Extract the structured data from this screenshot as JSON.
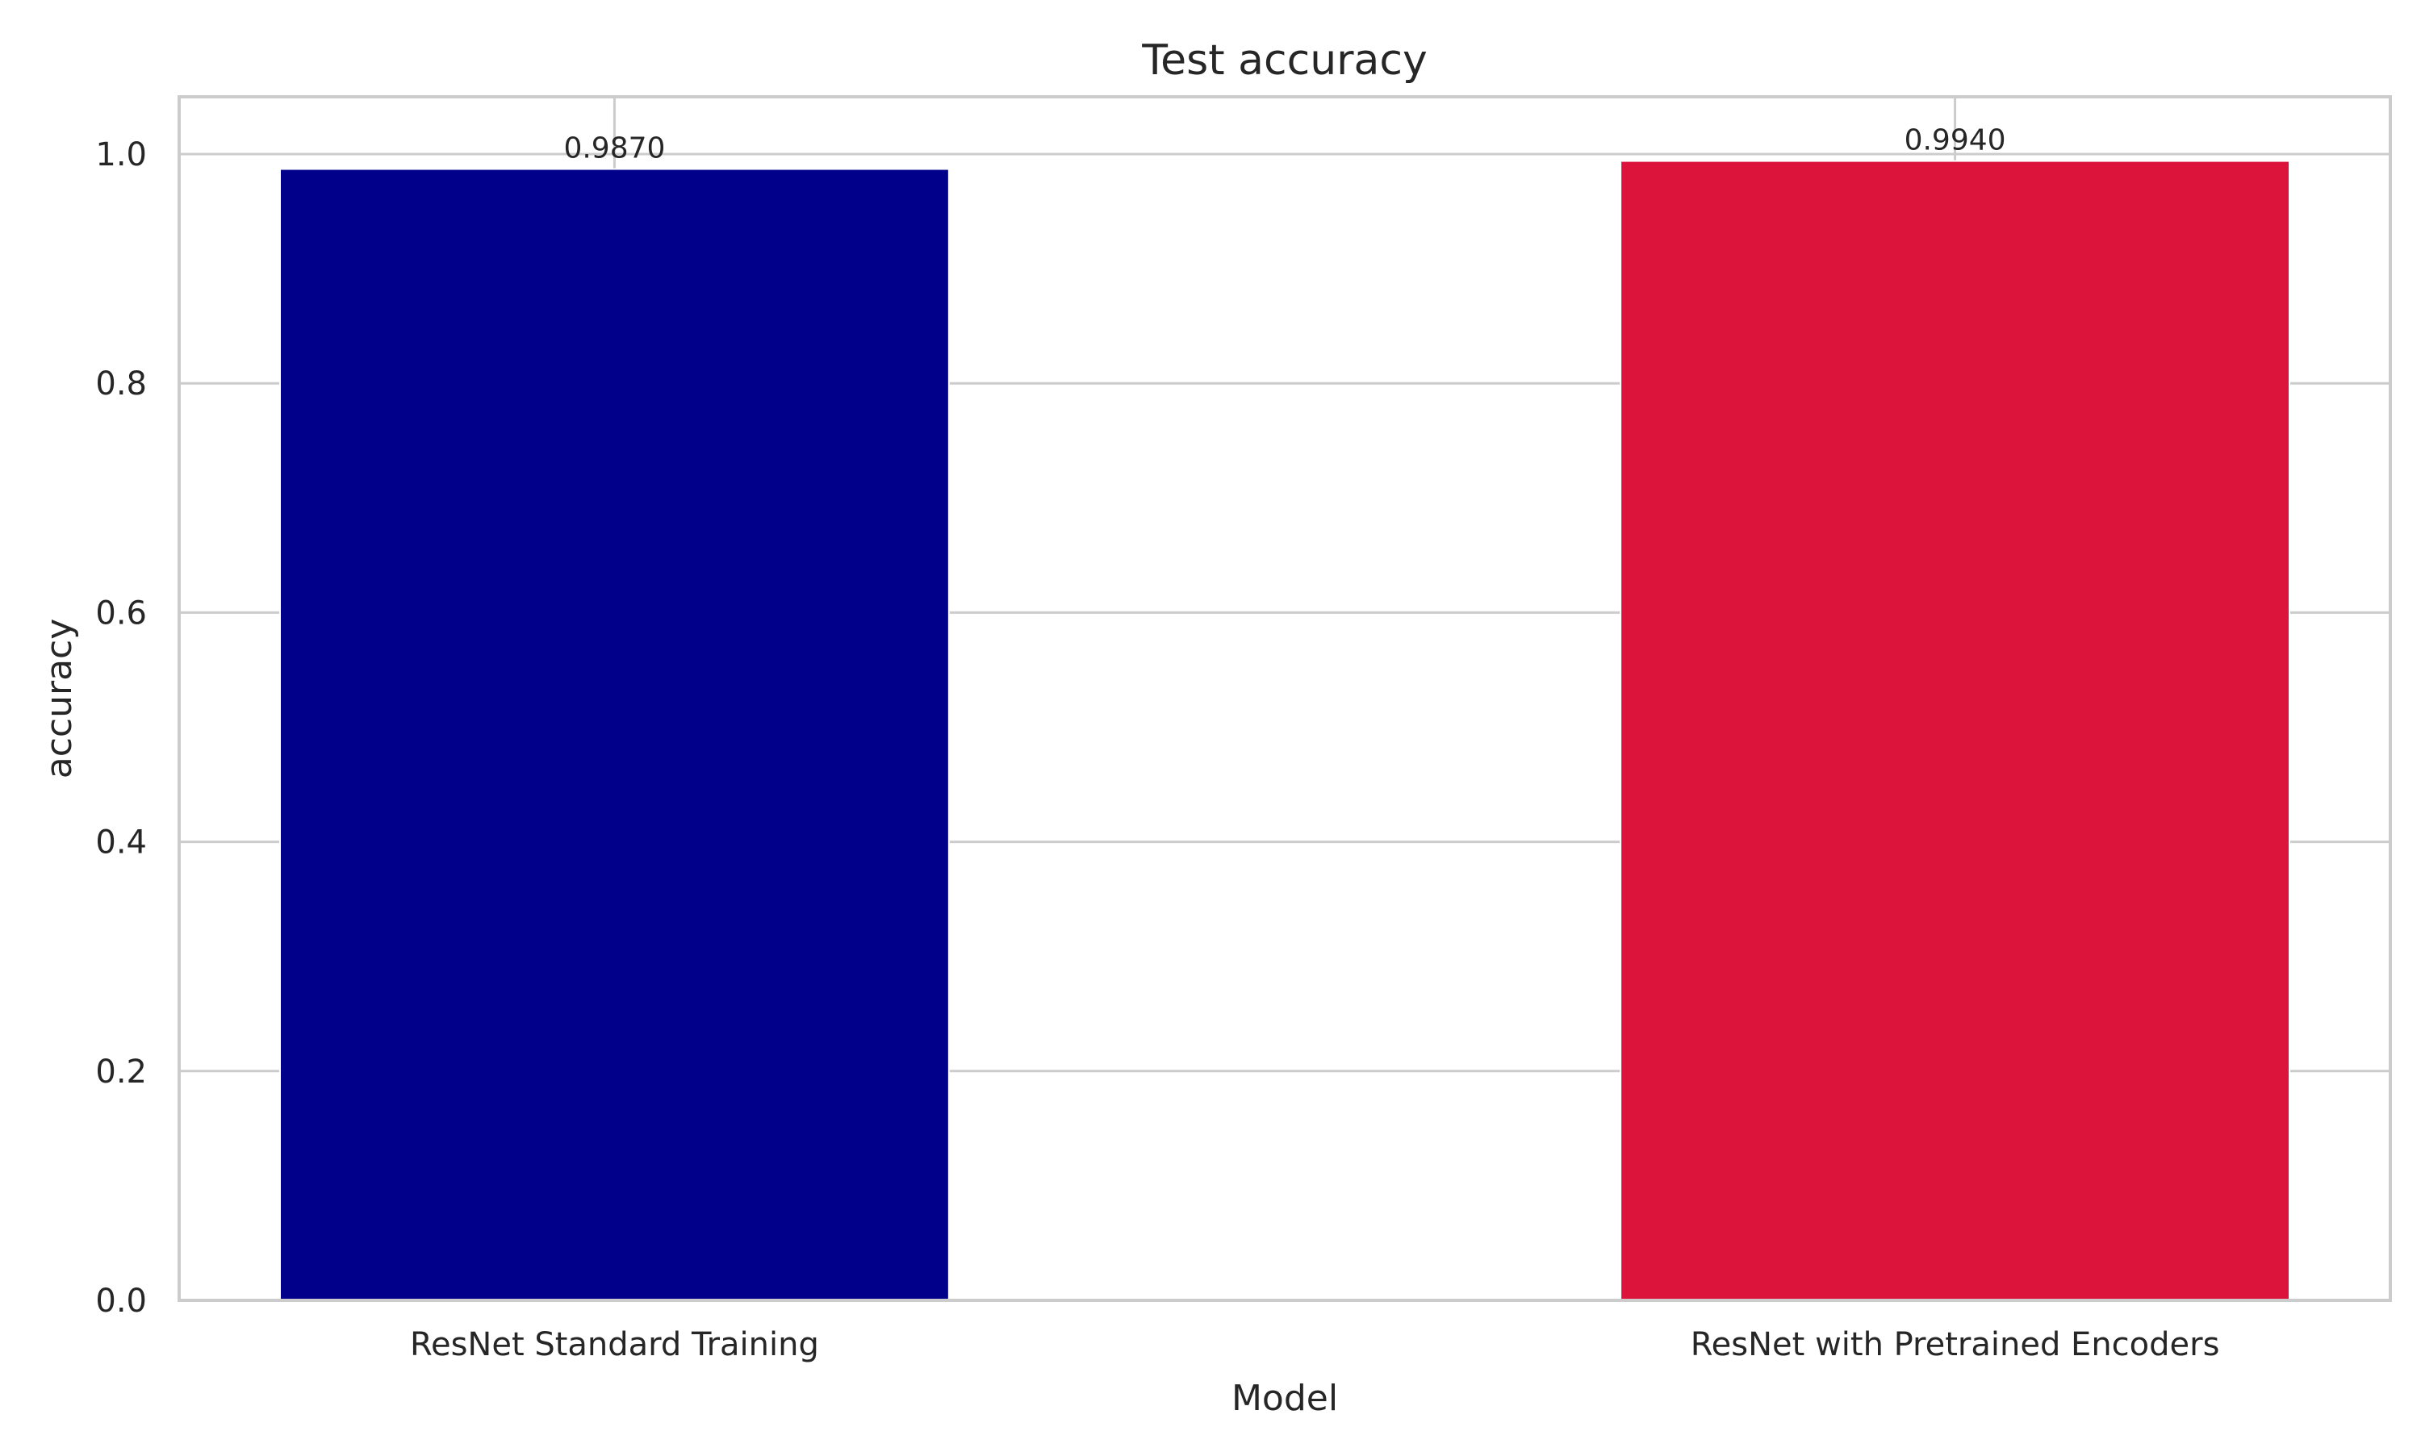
{
  "chart_data": {
    "type": "bar",
    "title": "Test accuracy",
    "xlabel": "Model",
    "ylabel": "accuracy",
    "categories": [
      "ResNet Standard Training",
      "ResNet with Pretrained Encoders"
    ],
    "values": [
      0.987,
      0.994
    ],
    "data_labels": [
      "0.9870",
      "0.9940"
    ],
    "colors": [
      "#00008b",
      "#dc143c"
    ],
    "ylim": [
      0,
      1.05
    ],
    "yticks": [
      0.0,
      0.2,
      0.4,
      0.6,
      0.8,
      1.0
    ],
    "ytick_labels": [
      "0.0",
      "0.2",
      "0.4",
      "0.6",
      "0.8",
      "1.0"
    ],
    "grid": true,
    "grid_color": "#cccccc",
    "frame_color": "#cccccc"
  }
}
